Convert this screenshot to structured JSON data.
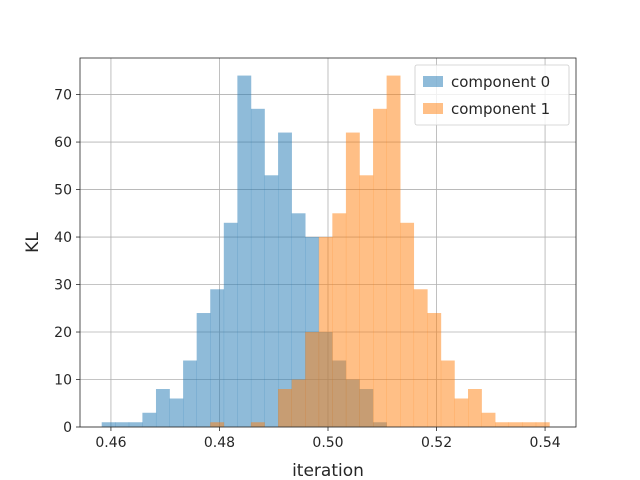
{
  "chart_data": {
    "type": "histogram",
    "title": "",
    "xlabel": "iteration",
    "ylabel": "KL",
    "xlim": [
      0.4543,
      0.5457
    ],
    "ylim": [
      0,
      77.7
    ],
    "xticks": [
      0.46,
      0.48,
      0.5,
      0.52,
      0.54
    ],
    "xtick_labels": [
      "0.46",
      "0.48",
      "0.50",
      "0.52",
      "0.54"
    ],
    "yticks": [
      0,
      10,
      20,
      30,
      40,
      50,
      60,
      70
    ],
    "ytick_labels": [
      "0",
      "10",
      "20",
      "30",
      "40",
      "50",
      "60",
      "70"
    ],
    "grid": true,
    "legend_position": "top-right",
    "series": [
      {
        "name": "component 0",
        "color": "#1f77b4",
        "alpha": 0.5,
        "bin_edges": [
          0.4583,
          0.4608,
          0.4633,
          0.4658,
          0.4683,
          0.4708,
          0.4733,
          0.4758,
          0.4783,
          0.4808,
          0.4833,
          0.4858,
          0.4883,
          0.4908,
          0.4933,
          0.4958,
          0.4983,
          0.5008,
          0.5033,
          0.5058,
          0.5083,
          0.5108
        ],
        "counts": [
          1,
          1,
          1,
          3,
          8,
          6,
          14,
          24,
          29,
          43,
          74,
          67,
          53,
          62,
          45,
          40,
          20,
          14,
          10,
          8,
          1
        ]
      },
      {
        "name": "component 1",
        "color": "#ff7f0e",
        "alpha": 0.5,
        "bin_edges": [
          0.4783,
          0.4808,
          0.4833,
          0.4858,
          0.4883,
          0.4908,
          0.4933,
          0.4958,
          0.4983,
          0.5008,
          0.5033,
          0.5058,
          0.5083,
          0.5108,
          0.5133,
          0.5158,
          0.5183,
          0.5208,
          0.5233,
          0.5258,
          0.5283,
          0.5308,
          0.5333,
          0.5358,
          0.5383,
          0.5408
        ],
        "counts": [
          1,
          0,
          0,
          1,
          0,
          8,
          10,
          20,
          40,
          45,
          62,
          53,
          67,
          74,
          43,
          29,
          24,
          14,
          6,
          8,
          3,
          1,
          1,
          1,
          1
        ]
      }
    ]
  }
}
